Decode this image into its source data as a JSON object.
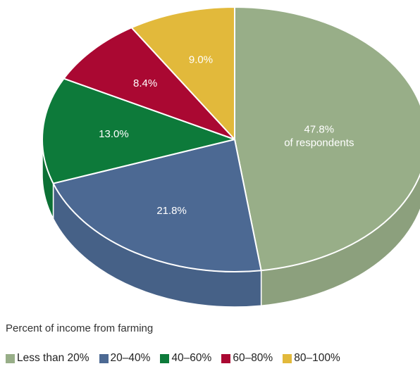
{
  "chart_data": {
    "type": "pie",
    "title": "",
    "legend_title": "Percent of income from farming",
    "legend_position": "bottom",
    "slices": [
      {
        "label": "Less than 20%",
        "value": 47.8,
        "display": "47.8%",
        "display_line2": "of respondents",
        "color": "#98ae88"
      },
      {
        "label": "20–40%",
        "value": 21.8,
        "display": "21.8%",
        "color": "#4c6993"
      },
      {
        "label": "40–60%",
        "value": 13.0,
        "display": "13.0%",
        "color": "#0d7a3a"
      },
      {
        "label": "60–80%",
        "value": 8.4,
        "display": "8.4%",
        "color": "#aa0832"
      },
      {
        "label": "80–100%",
        "value": 9.0,
        "display": "9.0%",
        "color": "#e2b93b"
      }
    ]
  }
}
